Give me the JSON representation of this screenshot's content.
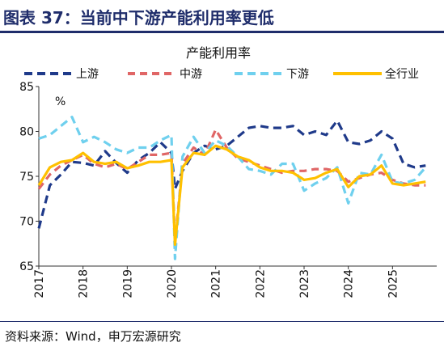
{
  "figure_title": "图表 37：当前中下游产能利用率更低",
  "source": "资料来源：Wind，申万宏源研究",
  "chart_data": {
    "type": "line",
    "title": "产能利用率",
    "unit_label": "%",
    "ylim": [
      65,
      85
    ],
    "yticks": [
      65,
      70,
      75,
      80,
      85
    ],
    "xlim": [
      2017,
      2026
    ],
    "xticks": [
      "2017",
      "2018",
      "2019",
      "2020",
      "2021",
      "2022",
      "2023",
      "2024",
      "2025"
    ],
    "grid": false,
    "legend_position": "top",
    "x": [
      2017.0,
      2017.25,
      2017.5,
      2017.75,
      2018.0,
      2018.25,
      2018.5,
      2018.75,
      2019.0,
      2019.25,
      2019.5,
      2019.75,
      2020.0,
      2020.08,
      2020.25,
      2020.5,
      2020.75,
      2021.0,
      2021.25,
      2021.5,
      2021.75,
      2022.0,
      2022.25,
      2022.5,
      2022.75,
      2023.0,
      2023.25,
      2023.5,
      2023.75,
      2024.0,
      2024.25,
      2024.5,
      2024.75,
      2025.0,
      2025.25,
      2025.5,
      2025.75
    ],
    "series": [
      {
        "name": "上游",
        "color": "#1f3a8a",
        "dash": "long",
        "values": [
          69.2,
          74.0,
          75.2,
          76.6,
          76.5,
          76.2,
          77.8,
          76.5,
          75.4,
          76.8,
          77.6,
          78.8,
          77.6,
          73.6,
          75.6,
          77.6,
          78.4,
          78.0,
          78.4,
          79.4,
          80.4,
          80.6,
          80.4,
          80.4,
          80.6,
          79.6,
          80.0,
          79.6,
          81.2,
          78.8,
          78.6,
          79.0,
          80.0,
          79.2,
          76.4,
          76.0,
          76.2
        ]
      },
      {
        "name": "中游",
        "color": "#e06666",
        "dash": "medium",
        "values": [
          73.6,
          75.2,
          76.2,
          76.8,
          77.4,
          76.4,
          76.0,
          76.4,
          75.8,
          76.6,
          77.4,
          77.4,
          77.6,
          67.6,
          76.4,
          78.2,
          77.4,
          80.2,
          78.2,
          77.0,
          76.6,
          76.2,
          75.8,
          75.4,
          75.6,
          75.6,
          75.8,
          75.8,
          75.6,
          74.4,
          74.8,
          75.2,
          75.4,
          74.6,
          74.2,
          74.0,
          74.0
        ]
      },
      {
        "name": "下游",
        "color": "#6fd0ee",
        "dash": "long",
        "values": [
          79.2,
          79.6,
          80.6,
          81.6,
          78.8,
          79.4,
          78.8,
          78.0,
          77.6,
          78.2,
          78.2,
          79.0,
          79.6,
          65.8,
          77.2,
          79.4,
          77.6,
          79.0,
          78.4,
          77.2,
          75.8,
          75.6,
          75.2,
          76.4,
          76.4,
          73.4,
          74.2,
          74.8,
          76.0,
          72.0,
          75.4,
          75.2,
          77.4,
          74.4,
          74.2,
          74.6,
          76.0
        ]
      },
      {
        "name": "全行业",
        "color": "#ffc000",
        "dash": "solid",
        "values": [
          74.0,
          76.0,
          76.6,
          76.8,
          77.6,
          76.6,
          76.4,
          76.6,
          75.9,
          76.2,
          76.6,
          76.6,
          76.8,
          67.4,
          76.0,
          77.6,
          77.4,
          78.4,
          78.0,
          77.2,
          76.8,
          76.0,
          75.6,
          75.6,
          75.4,
          74.6,
          74.8,
          75.4,
          75.8,
          73.8,
          75.0,
          75.2,
          76.2,
          74.2,
          74.0,
          74.2,
          74.4
        ]
      }
    ]
  }
}
